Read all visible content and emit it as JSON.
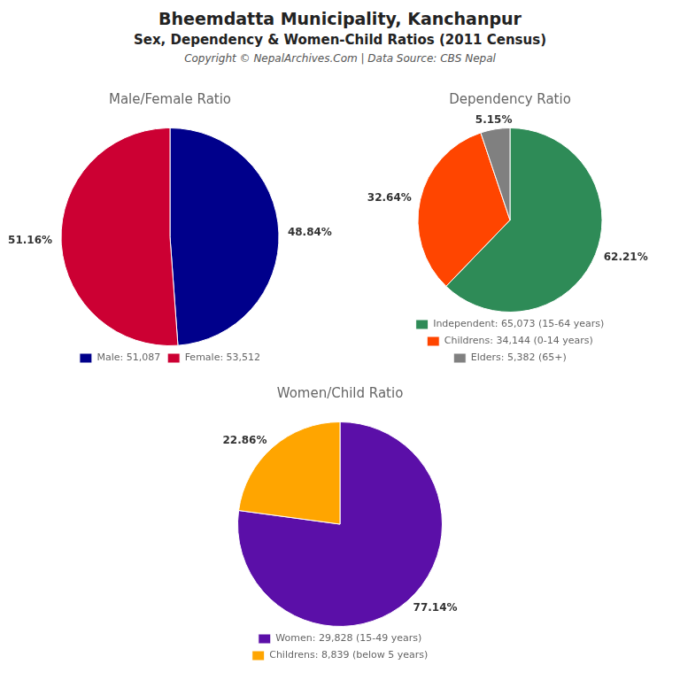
{
  "title": "Bheemdatta Municipality, Kanchanpur",
  "subtitle": "Sex, Dependency & Women-Child Ratios (2011 Census)",
  "annotations": [
    "Copyright © NepalArchives.Com | Data Source: CBS Nepal"
  ],
  "chart_data": [
    {
      "type": "pie",
      "title": "Male/Female Ratio",
      "categories": [
        "Male: 51,087",
        "Female: 53,512"
      ],
      "values": [
        48.84,
        51.16
      ],
      "value_labels": [
        "48.84%",
        "51.16%"
      ],
      "colors": [
        "#00008B",
        "#CC0033"
      ],
      "data_labels": true,
      "legend": "bottom"
    },
    {
      "type": "pie",
      "title": "Dependency Ratio",
      "categories": [
        "Independent: 65,073 (15-64 years)",
        "Childrens: 34,144 (0-14 years)",
        "Elders: 5,382 (65+)"
      ],
      "values": [
        62.21,
        32.64,
        5.15
      ],
      "value_labels": [
        "62.21%",
        "32.64%",
        "5.15%"
      ],
      "colors": [
        "#2E8B57",
        "#FF4500",
        "#808080"
      ],
      "data_labels": true,
      "legend": "bottom"
    },
    {
      "type": "pie",
      "title": "Women/Child Ratio",
      "categories": [
        "Women: 29,828 (15-49 years)",
        "Childrens: 8,839 (below 5 years)"
      ],
      "values": [
        77.14,
        22.86
      ],
      "value_labels": [
        "77.14%",
        "22.86%"
      ],
      "colors": [
        "#5B0FA8",
        "#FFA500"
      ],
      "data_labels": true,
      "legend": "bottom"
    }
  ]
}
